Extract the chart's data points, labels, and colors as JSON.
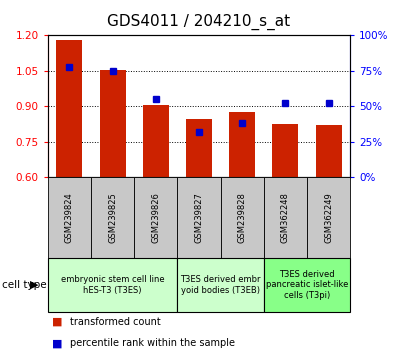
{
  "title": "GDS4011 / 204210_s_at",
  "samples": [
    "GSM239824",
    "GSM239825",
    "GSM239826",
    "GSM239827",
    "GSM239828",
    "GSM362248",
    "GSM362249"
  ],
  "transformed_counts": [
    1.18,
    1.055,
    0.905,
    0.845,
    0.875,
    0.825,
    0.82
  ],
  "percentile_ranks": [
    78,
    75,
    55,
    32,
    38,
    52,
    52
  ],
  "ylim_left": [
    0.6,
    1.2
  ],
  "ylim_right": [
    0,
    100
  ],
  "yticks_left": [
    0.6,
    0.75,
    0.9,
    1.05,
    1.2
  ],
  "yticks_right": [
    0,
    25,
    50,
    75,
    100
  ],
  "ytick_labels_right": [
    "0%",
    "25%",
    "50%",
    "75%",
    "100%"
  ],
  "bar_color": "#cc2200",
  "percentile_color": "#0000cc",
  "bar_bottom": 0.6,
  "cell_type_groups": [
    {
      "label": "embryonic stem cell line\nhES-T3 (T3ES)",
      "start": 0,
      "end": 3,
      "color": "#ccffcc"
    },
    {
      "label": "T3ES derived embr\nyoid bodies (T3EB)",
      "start": 3,
      "end": 5,
      "color": "#ccffcc"
    },
    {
      "label": "T3ES derived\npancreatic islet-like\ncells (T3pi)",
      "start": 5,
      "end": 7,
      "color": "#88ff88"
    }
  ],
  "legend_items": [
    {
      "color": "#cc2200",
      "label": "transformed count"
    },
    {
      "color": "#0000cc",
      "label": "percentile rank within the sample"
    }
  ],
  "cell_type_label": "cell type",
  "title_fontsize": 11,
  "tick_fontsize": 7.5,
  "sample_fontsize": 6,
  "celltype_fontsize": 6,
  "legend_fontsize": 7
}
